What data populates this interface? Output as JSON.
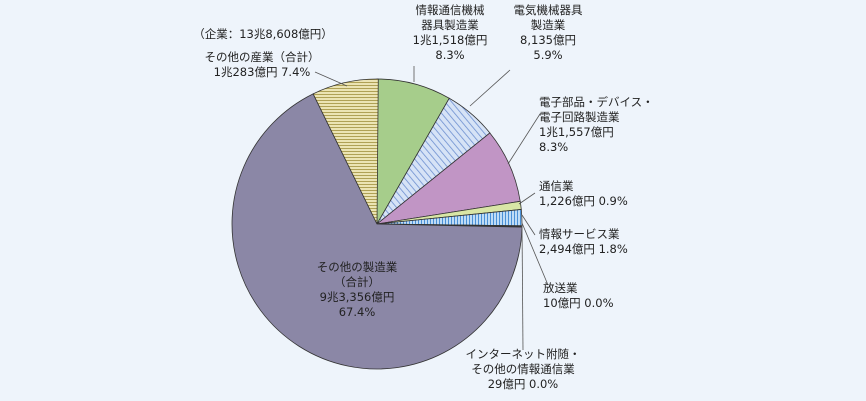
{
  "chart_data": {
    "type": "pie",
    "note": "（企業：13兆8,608億円）",
    "slices": [
      {
        "name": "情報通信機械器具製造業",
        "lines": [
          "情報通信機械",
          "器具製造業",
          "1兆1,518億円",
          "8.3%"
        ],
        "value": 8.3,
        "color": "#a6cd8b"
      },
      {
        "name": "電気機械器具製造業",
        "lines": [
          "電気機械器具",
          "製造業",
          "8,135億円",
          "5.9%"
        ],
        "value": 5.9,
        "color": "#c6d7f2",
        "pattern": "diag"
      },
      {
        "name": "電子部品・デバイス・電子回路製造業",
        "lines": [
          "電子部品・デバイス・",
          "電子回路製造業",
          "1兆1,557億円",
          "8.3%"
        ],
        "value": 8.3,
        "color": "#c195c5"
      },
      {
        "name": "通信業",
        "lines": [
          "通信業",
          "1,226億円 0.9%"
        ],
        "value": 0.9,
        "color": "#d9e6a6"
      },
      {
        "name": "情報サービス業",
        "lines": [
          "情報サービス業",
          "2,494億円 1.8%"
        ],
        "value": 1.8,
        "color": "#a9d0f2",
        "pattern": "vert"
      },
      {
        "name": "放送業",
        "lines": [
          "放送業",
          "10億円 0.0%"
        ],
        "value": 0.0,
        "color": "#d6b86a"
      },
      {
        "name": "インターネット附随・その他の情報通信業",
        "lines": [
          "インターネット附随・",
          "その他の情報通信業",
          "29億円 0.0%"
        ],
        "value": 0.0,
        "color": "#999999"
      },
      {
        "name": "その他の製造業（合計）",
        "lines": [
          "その他の製造業",
          "（合計）",
          "9兆3,356億円",
          "67.4%"
        ],
        "value": 67.4,
        "color": "#8b87a6"
      },
      {
        "name": "その他の産業（合計）",
        "lines": [
          "その他の産業（合計）",
          "1兆283億円 7.4%"
        ],
        "value": 7.4,
        "color": "#e3dba0",
        "pattern": "horiz"
      }
    ]
  }
}
